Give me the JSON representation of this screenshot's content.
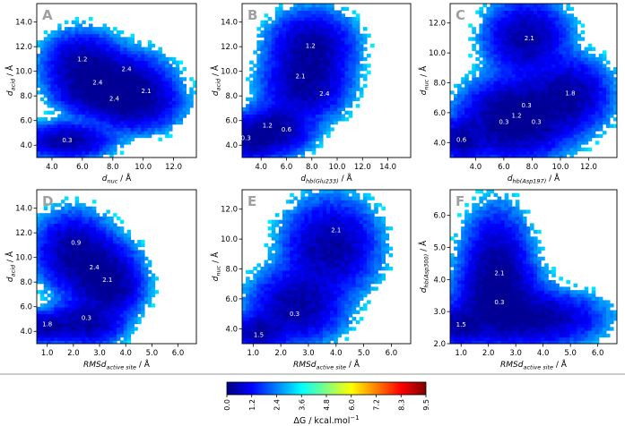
{
  "figure": {
    "colorbar": {
      "label_main": "ΔG / kcal.mol",
      "label_sup": "−1",
      "ticks": [
        "0.0",
        "1.2",
        "2.4",
        "3.6",
        "4.8",
        "6.0",
        "7.2",
        "8.3",
        "9.5"
      ],
      "range": [
        0.0,
        9.5
      ],
      "colormap": "jet",
      "stops": [
        "#00007f",
        "#0000ff",
        "#0080ff",
        "#00ffff",
        "#80ff80",
        "#ffff00",
        "#ff8000",
        "#ff0000",
        "#7f0000"
      ]
    }
  },
  "chart_data": [
    {
      "panel": "A",
      "type": "heatmap",
      "xlabel": "d",
      "xlabel_sub": "nuc",
      "xlabel_tail": " / Å",
      "ylabel": "d",
      "ylabel_sub": "acid",
      "ylabel_tail": " / Å",
      "xlim": [
        3.0,
        13.5
      ],
      "ylim": [
        3.0,
        15.5
      ],
      "xticks": [
        4.0,
        6.0,
        8.0,
        10.0,
        12.0
      ],
      "yticks": [
        4.0,
        6.0,
        8.0,
        10.0,
        12.0,
        14.0
      ],
      "wells": [
        [
          5.0,
          4.4,
          1.4,
          0.7
        ],
        [
          6.0,
          10.5,
          1.2,
          1.3
        ],
        [
          8.5,
          9.0,
          1.5,
          1.3
        ],
        [
          9.5,
          7.5,
          1.4,
          1.1
        ],
        [
          7.2,
          8.5,
          1.4,
          1.0
        ]
      ],
      "annotations": [
        {
          "x": 5.0,
          "y": 4.4,
          "text": "0.3"
        },
        {
          "x": 6.0,
          "y": 11.0,
          "text": "1.2"
        },
        {
          "x": 7.0,
          "y": 9.1,
          "text": "2.4"
        },
        {
          "x": 8.9,
          "y": 10.2,
          "text": "2.4"
        },
        {
          "x": 8.1,
          "y": 7.8,
          "text": "2.4"
        },
        {
          "x": 10.2,
          "y": 8.4,
          "text": "2.1"
        }
      ]
    },
    {
      "panel": "B",
      "type": "heatmap",
      "xlabel": "d",
      "xlabel_sub": "hb(Glu233)",
      "xlabel_tail": " / Å",
      "ylabel": "d",
      "ylabel_sub": "acid",
      "ylabel_tail": " / Å",
      "xlim": [
        2.5,
        15.8
      ],
      "ylim": [
        3.0,
        15.5
      ],
      "xticks": [
        4.0,
        6.0,
        8.0,
        10.0,
        12.0,
        14.0
      ],
      "yticks": [
        4.0,
        6.0,
        8.0,
        10.0,
        12.0,
        14.0
      ],
      "wells": [
        [
          3.0,
          4.5,
          1.4,
          0.8
        ],
        [
          5.2,
          5.4,
          1.4,
          1.0
        ],
        [
          8.0,
          12.0,
          1.6,
          1.4
        ],
        [
          7.5,
          9.0,
          1.6,
          1.4
        ]
      ],
      "annotations": [
        {
          "x": 2.8,
          "y": 4.6,
          "text": "0.3"
        },
        {
          "x": 4.5,
          "y": 5.6,
          "text": "1.2"
        },
        {
          "x": 6.0,
          "y": 5.3,
          "text": "0.6"
        },
        {
          "x": 7.9,
          "y": 12.1,
          "text": "1.2"
        },
        {
          "x": 7.1,
          "y": 9.6,
          "text": "2.1"
        },
        {
          "x": 9.0,
          "y": 8.2,
          "text": "2.4"
        }
      ]
    },
    {
      "panel": "C",
      "type": "heatmap",
      "xlabel": "d",
      "xlabel_sub": "hb(Asp197)",
      "xlabel_tail": " / Å",
      "ylabel": "d",
      "ylabel_sub": "nuc",
      "ylabel_tail": " / Å",
      "xlim": [
        2.2,
        14.0
      ],
      "ylim": [
        3.0,
        13.3
      ],
      "xticks": [
        4.0,
        6.0,
        8.0,
        10.0,
        12.0
      ],
      "yticks": [
        4.0,
        6.0,
        8.0,
        10.0,
        12.0
      ],
      "wells": [
        [
          6.0,
          5.5,
          1.6,
          1.3
        ],
        [
          7.8,
          5.8,
          1.6,
          1.3
        ],
        [
          3.1,
          4.2,
          0.8,
          0.7
        ],
        [
          7.6,
          11.0,
          1.4,
          1.2
        ],
        [
          10.6,
          7.2,
          1.4,
          1.2
        ]
      ],
      "annotations": [
        {
          "x": 3.0,
          "y": 4.2,
          "text": "0.6"
        },
        {
          "x": 6.0,
          "y": 5.4,
          "text": "0.3"
        },
        {
          "x": 6.9,
          "y": 5.8,
          "text": "1.2"
        },
        {
          "x": 7.6,
          "y": 6.5,
          "text": "0.3"
        },
        {
          "x": 8.3,
          "y": 5.4,
          "text": "0.3"
        },
        {
          "x": 7.8,
          "y": 11.0,
          "text": "2.1"
        },
        {
          "x": 10.7,
          "y": 7.3,
          "text": "1.8"
        }
      ]
    },
    {
      "panel": "D",
      "type": "heatmap",
      "xlabel": "RMSd",
      "xlabel_sub": "active site",
      "xlabel_tail": " / Å",
      "ylabel": "d",
      "ylabel_sub": "acid",
      "ylabel_tail": " / Å",
      "xlim": [
        0.6,
        6.7
      ],
      "ylim": [
        3.0,
        15.5
      ],
      "xticks": [
        1.0,
        2.0,
        3.0,
        4.0,
        5.0,
        6.0
      ],
      "yticks": [
        4.0,
        6.0,
        8.0,
        10.0,
        12.0,
        14.0
      ],
      "wells": [
        [
          2.5,
          4.8,
          0.7,
          0.9
        ],
        [
          2.0,
          10.5,
          0.7,
          1.5
        ],
        [
          1.0,
          4.4,
          0.5,
          0.6
        ],
        [
          3.0,
          9.0,
          0.7,
          1.3
        ],
        [
          3.4,
          7.5,
          0.6,
          1.1
        ]
      ],
      "annotations": [
        {
          "x": 1.0,
          "y": 4.6,
          "text": "1.8"
        },
        {
          "x": 2.5,
          "y": 5.1,
          "text": "0.3"
        },
        {
          "x": 2.1,
          "y": 11.2,
          "text": "0.9"
        },
        {
          "x": 2.8,
          "y": 9.2,
          "text": "2.4"
        },
        {
          "x": 3.3,
          "y": 8.2,
          "text": "2.1"
        }
      ]
    },
    {
      "panel": "E",
      "type": "heatmap",
      "xlabel": "RMSd",
      "xlabel_sub": "active site",
      "xlabel_tail": " / Å",
      "ylabel": "d",
      "ylabel_sub": "nuc",
      "ylabel_tail": " / Å",
      "xlim": [
        0.6,
        6.7
      ],
      "ylim": [
        3.0,
        13.3
      ],
      "xticks": [
        1.0,
        2.0,
        3.0,
        4.0,
        5.0,
        6.0
      ],
      "yticks": [
        4.0,
        6.0,
        8.0,
        10.0,
        12.0
      ],
      "wells": [
        [
          2.6,
          5.6,
          0.8,
          1.2
        ],
        [
          1.2,
          3.8,
          0.5,
          0.6
        ],
        [
          3.8,
          9.5,
          0.8,
          1.5
        ]
      ],
      "annotations": [
        {
          "x": 1.2,
          "y": 3.6,
          "text": "1.5"
        },
        {
          "x": 2.5,
          "y": 5.0,
          "text": "0.3"
        },
        {
          "x": 4.0,
          "y": 10.6,
          "text": "2.1"
        }
      ]
    },
    {
      "panel": "F",
      "type": "heatmap",
      "xlabel": "RMSd",
      "xlabel_sub": "active site",
      "xlabel_tail": " / Å",
      "ylabel": "d",
      "ylabel_sub": "hb(Asp300)",
      "ylabel_tail": " / Å",
      "xlim": [
        0.6,
        6.7
      ],
      "ylim": [
        2.0,
        6.8
      ],
      "xticks": [
        1.0,
        2.0,
        3.0,
        4.0,
        5.0,
        6.0
      ],
      "yticks": [
        2.0,
        3.0,
        4.0,
        5.0,
        6.0
      ],
      "wells": [
        [
          2.4,
          3.3,
          0.8,
          0.6
        ],
        [
          1.0,
          2.6,
          0.5,
          0.3
        ],
        [
          3.8,
          2.8,
          1.1,
          0.4
        ],
        [
          2.3,
          4.3,
          0.6,
          0.9
        ]
      ],
      "annotations": [
        {
          "x": 1.0,
          "y": 2.6,
          "text": "1.5"
        },
        {
          "x": 2.4,
          "y": 4.2,
          "text": "2.1"
        },
        {
          "x": 2.4,
          "y": 3.3,
          "text": "0.3"
        }
      ]
    }
  ]
}
